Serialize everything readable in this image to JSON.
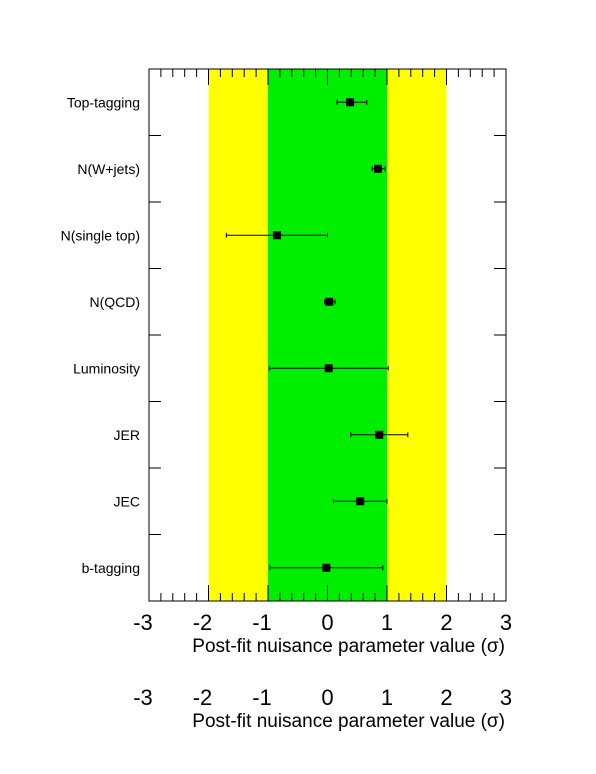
{
  "chart_data": [
    {
      "type": "scatter",
      "title": "",
      "xlabel": "Post-fit nuisance parameter value (σ)",
      "ylabel": "",
      "xlim": [
        -3,
        3
      ],
      "x_ticks": [
        "-3",
        "-2",
        "-1",
        "0",
        "1",
        "2",
        "3"
      ],
      "bands": [
        {
          "range": [
            -2,
            2
          ],
          "color": "#ffff00"
        },
        {
          "range": [
            -1,
            1
          ],
          "color": "#00ee00"
        }
      ],
      "categories": [
        "Top-tagging",
        "N(W+jets)",
        "N(single top)",
        "N(QCD)",
        "Luminosity",
        "JER",
        "JEC",
        "b-tagging"
      ],
      "values": [
        0.38,
        0.85,
        -0.85,
        0.03,
        0.02,
        0.87,
        0.55,
        -0.02
      ],
      "err_low": [
        0.22,
        0.1,
        0.85,
        0.08,
        1.0,
        0.48,
        0.45,
        0.95
      ],
      "err_high": [
        0.28,
        0.12,
        0.85,
        0.1,
        1.0,
        0.48,
        0.45,
        0.95
      ],
      "grid": false,
      "marker_color": "#000000"
    },
    {
      "type": "axis-only",
      "xlabel": "Post-fit nuisance parameter value (σ)",
      "xlim": [
        -3,
        3
      ],
      "x_ticks": [
        "-3",
        "-2",
        "-1",
        "0",
        "1",
        "2",
        "3"
      ]
    }
  ]
}
